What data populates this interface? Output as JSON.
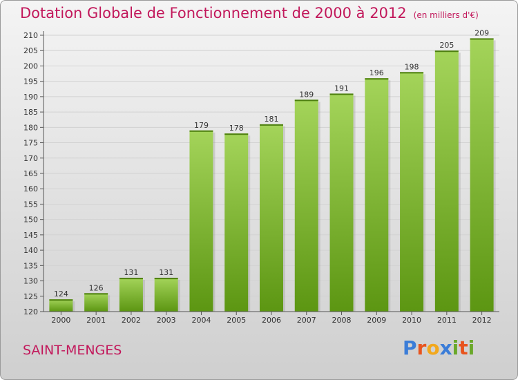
{
  "header": {
    "title": "Dotation Globale de Fonctionnement de 2000 à 2012",
    "unit": "(en milliers d'€)"
  },
  "footer": {
    "commune": "SAINT-MENGES",
    "logo_letters": [
      "P",
      "r",
      "o",
      "x",
      "i",
      "t",
      "i"
    ],
    "logo_colors": [
      "#3b7dd8",
      "#e8541e",
      "#f2a81d",
      "#3b7dd8",
      "#6aa82a",
      "#e8541e",
      "#6aa82a"
    ]
  },
  "colors": {
    "title": "#c2185b",
    "bar_light": "#9fd054",
    "bar_dark": "#5f9a14"
  },
  "chart_data": {
    "type": "bar",
    "title": "Dotation Globale de Fonctionnement de 2000 à 2012",
    "xlabel": "",
    "ylabel": "",
    "categories": [
      "2000",
      "2001",
      "2002",
      "2003",
      "2004",
      "2005",
      "2006",
      "2007",
      "2008",
      "2009",
      "2010",
      "2011",
      "2012"
    ],
    "values": [
      124,
      126,
      131,
      131,
      179,
      178,
      181,
      189,
      191,
      196,
      198,
      205,
      209
    ],
    "ylim": [
      120,
      210
    ],
    "yticks": [
      120,
      125,
      130,
      135,
      140,
      145,
      150,
      155,
      160,
      165,
      170,
      175,
      180,
      185,
      190,
      195,
      200,
      205,
      210
    ],
    "grid": true
  }
}
